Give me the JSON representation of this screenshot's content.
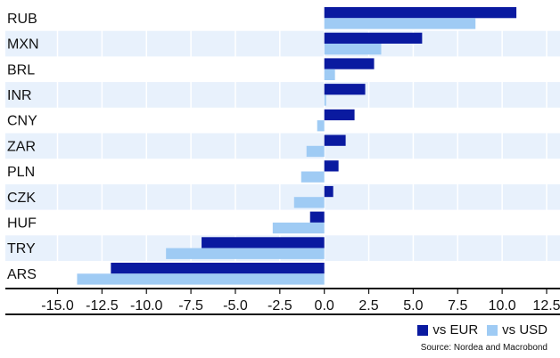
{
  "chart_data": {
    "type": "bar",
    "orientation": "horizontal",
    "categories": [
      "RUB",
      "MXN",
      "BRL",
      "INR",
      "CNY",
      "ZAR",
      "PLN",
      "CZK",
      "HUF",
      "TRY",
      "ARS"
    ],
    "series": [
      {
        "name": "vs EUR",
        "color": "#0a1aa0",
        "values": [
          10.8,
          5.5,
          2.8,
          2.3,
          1.7,
          1.2,
          0.8,
          0.5,
          -0.8,
          -6.9,
          -12.0
        ]
      },
      {
        "name": "vs USD",
        "color": "#9fcbf4",
        "values": [
          8.5,
          3.2,
          0.6,
          0.1,
          -0.4,
          -1.0,
          -1.3,
          -1.7,
          -2.9,
          -8.9,
          -13.9
        ]
      }
    ],
    "xlim": [
      -15.0,
      12.5
    ],
    "xticks": [
      -15.0,
      -12.5,
      -10.0,
      -7.5,
      -5.0,
      -2.5,
      0.0,
      2.5,
      5.0,
      7.5,
      10.0,
      12.5
    ],
    "xtick_labels": [
      "-15.0",
      "-12.5",
      "-10.0",
      "-7.5",
      "-5.0",
      "-2.5",
      "0.0",
      "2.5",
      "5.0",
      "7.5",
      "10.0",
      "12.5"
    ],
    "band_color": "#e8f1fc",
    "legend_position": "bottom-right",
    "source": "Source: Nordea and Macrobond"
  }
}
